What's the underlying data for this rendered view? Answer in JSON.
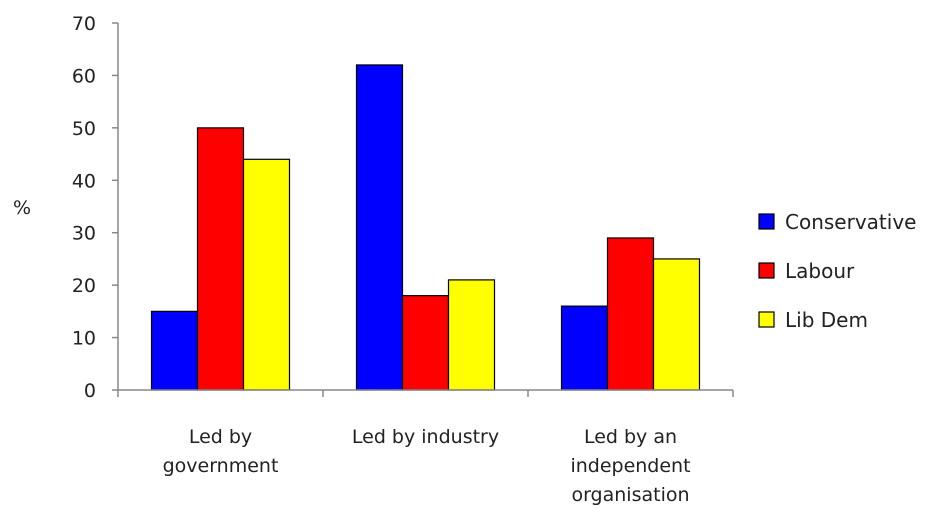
{
  "chart_data": {
    "type": "bar",
    "title": "",
    "xlabel": "",
    "ylabel": "%",
    "ylim": [
      0,
      70
    ],
    "yticks": [
      0,
      10,
      20,
      30,
      40,
      50,
      60,
      70
    ],
    "grid": false,
    "legend_position": "right",
    "categories": [
      [
        "Led by",
        "government"
      ],
      [
        "Led by industry"
      ],
      [
        "Led by an",
        "independent",
        "organisation"
      ]
    ],
    "series": [
      {
        "name": "Conservative",
        "color": "#0000ff",
        "values": [
          15,
          62,
          16
        ]
      },
      {
        "name": "Labour",
        "color": "#ff0000",
        "values": [
          50,
          18,
          29
        ]
      },
      {
        "name": "Lib Dem",
        "color": "#ffff00",
        "values": [
          44,
          21,
          25
        ]
      }
    ]
  }
}
